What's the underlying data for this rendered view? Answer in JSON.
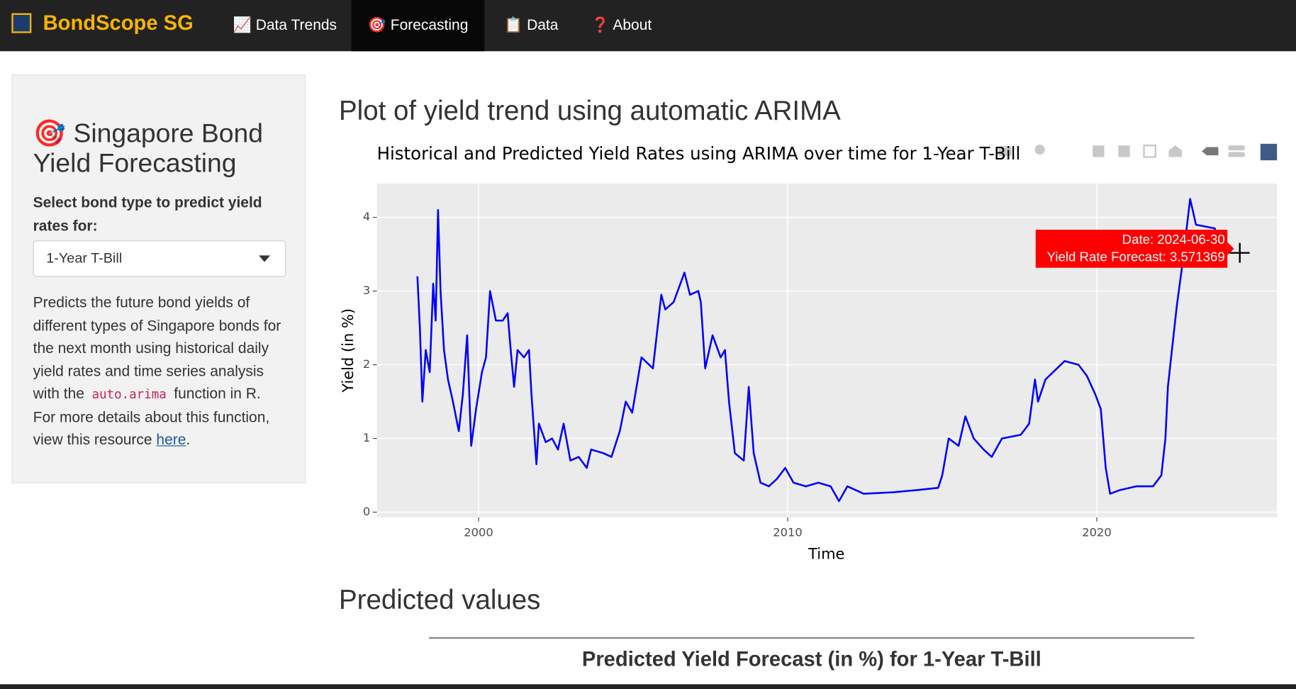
{
  "navbar": {
    "brand": "BondScope SG",
    "items": [
      "📈 Data Trends",
      "🎯 Forecasting",
      "📋 Data",
      "❓ About"
    ],
    "active": 1
  },
  "sidebar": {
    "title": "🎯 Singapore Bond Yield Forecasting",
    "select_label": "Select bond type to predict yield rates for:",
    "select_value": "1-Year T-Bill",
    "description": [
      "Predicts the future bond yields of different types of Singapore bonds for the next month using historical daily yield rates and time series analysis with the",
      "function in R. For more details about this function, view this resource",
      "."
    ],
    "code": "auto.arima",
    "link": "here"
  },
  "main": {
    "heading": "Plot of yield trend using automatic ARIMA",
    "heading2": "Predicted values",
    "table_caption": "Predicted Yield Forecast (in %) for 1-Year T-Bill"
  },
  "tooltip": {
    "date": "Date: 2024-06-30",
    "value": "Yield Rate Forecast: 3.571369"
  },
  "chart_data": {
    "type": "line",
    "title": "Historical and Predicted Yield Rates using ARIMA over time for 1-Year T-Bill",
    "xlabel": "Time",
    "ylabel": "Yield (in %)",
    "grid": true,
    "xlim": [
      1996.71,
      2025.83
    ],
    "xticks": [
      2000,
      2010,
      2020
    ],
    "ylim": [
      -0.07,
      4.46
    ],
    "yticks": [
      0,
      1,
      2,
      3,
      4
    ],
    "x": [
      1998.02,
      1998.1,
      1998.18,
      1998.29,
      1998.42,
      1998.53,
      1998.61,
      1998.69,
      1998.77,
      1998.88,
      1999.01,
      1999.17,
      1999.36,
      1999.49,
      1999.63,
      1999.76,
      1999.92,
      2000.11,
      2000.24,
      2000.37,
      2000.56,
      2000.78,
      2000.94,
      2001.04,
      2001.15,
      2001.26,
      2001.47,
      2001.63,
      2001.71,
      2001.87,
      2001.95,
      2002.17,
      2002.38,
      2002.57,
      2002.75,
      2002.97,
      2003.24,
      2003.5,
      2003.64,
      2004.04,
      2004.3,
      2004.57,
      2004.76,
      2004.97,
      2005.27,
      2005.64,
      2005.91,
      2006.04,
      2006.31,
      2006.66,
      2006.84,
      2007.11,
      2007.19,
      2007.33,
      2007.57,
      2007.83,
      2007.97,
      2008.1,
      2008.29,
      2008.58,
      2008.74,
      2008.9,
      2009.12,
      2009.39,
      2009.65,
      2009.92,
      2010.19,
      2010.59,
      2010.99,
      2011.39,
      2011.66,
      2011.93,
      2012.46,
      2013.4,
      2014.2,
      2014.87,
      2015.0,
      2015.21,
      2015.53,
      2015.75,
      2016.02,
      2016.34,
      2016.6,
      2016.93,
      2017.54,
      2017.81,
      2018.0,
      2018.1,
      2018.34,
      2018.96,
      2019.41,
      2019.68,
      2019.95,
      2020.13,
      2020.29,
      2020.43,
      2020.75,
      2021.28,
      2021.82,
      2022.09,
      2022.22,
      2022.3,
      2022.59,
      2022.75,
      2023.02,
      2023.21,
      2023.82,
      2023.96
    ],
    "series": [
      {
        "name": "Yield",
        "color": "#0000ff",
        "values": [
          3.2,
          2.5,
          1.5,
          2.2,
          1.9,
          3.1,
          2.6,
          4.1,
          3.0,
          2.2,
          1.8,
          1.5,
          1.1,
          1.6,
          2.4,
          0.9,
          1.4,
          1.9,
          2.1,
          3.0,
          2.6,
          2.6,
          2.7,
          2.2,
          1.7,
          2.2,
          2.1,
          2.2,
          1.6,
          0.65,
          1.2,
          0.95,
          1.0,
          0.85,
          1.2,
          0.7,
          0.75,
          0.6,
          0.85,
          0.8,
          0.75,
          1.1,
          1.5,
          1.35,
          2.1,
          1.95,
          2.95,
          2.75,
          2.85,
          3.25,
          2.95,
          3.0,
          2.85,
          1.95,
          2.4,
          2.1,
          2.2,
          1.5,
          0.8,
          0.7,
          1.7,
          0.8,
          0.4,
          0.35,
          0.45,
          0.6,
          0.4,
          0.35,
          0.4,
          0.35,
          0.15,
          0.35,
          0.25,
          0.27,
          0.3,
          0.33,
          0.5,
          1.0,
          0.9,
          1.3,
          1.0,
          0.85,
          0.75,
          1.0,
          1.05,
          1.2,
          1.8,
          1.5,
          1.8,
          2.05,
          2.0,
          1.85,
          1.6,
          1.4,
          0.6,
          0.25,
          0.3,
          0.35,
          0.35,
          0.5,
          1.0,
          1.7,
          2.8,
          3.3,
          4.25,
          3.9,
          3.85,
          3.6
        ]
      }
    ]
  }
}
